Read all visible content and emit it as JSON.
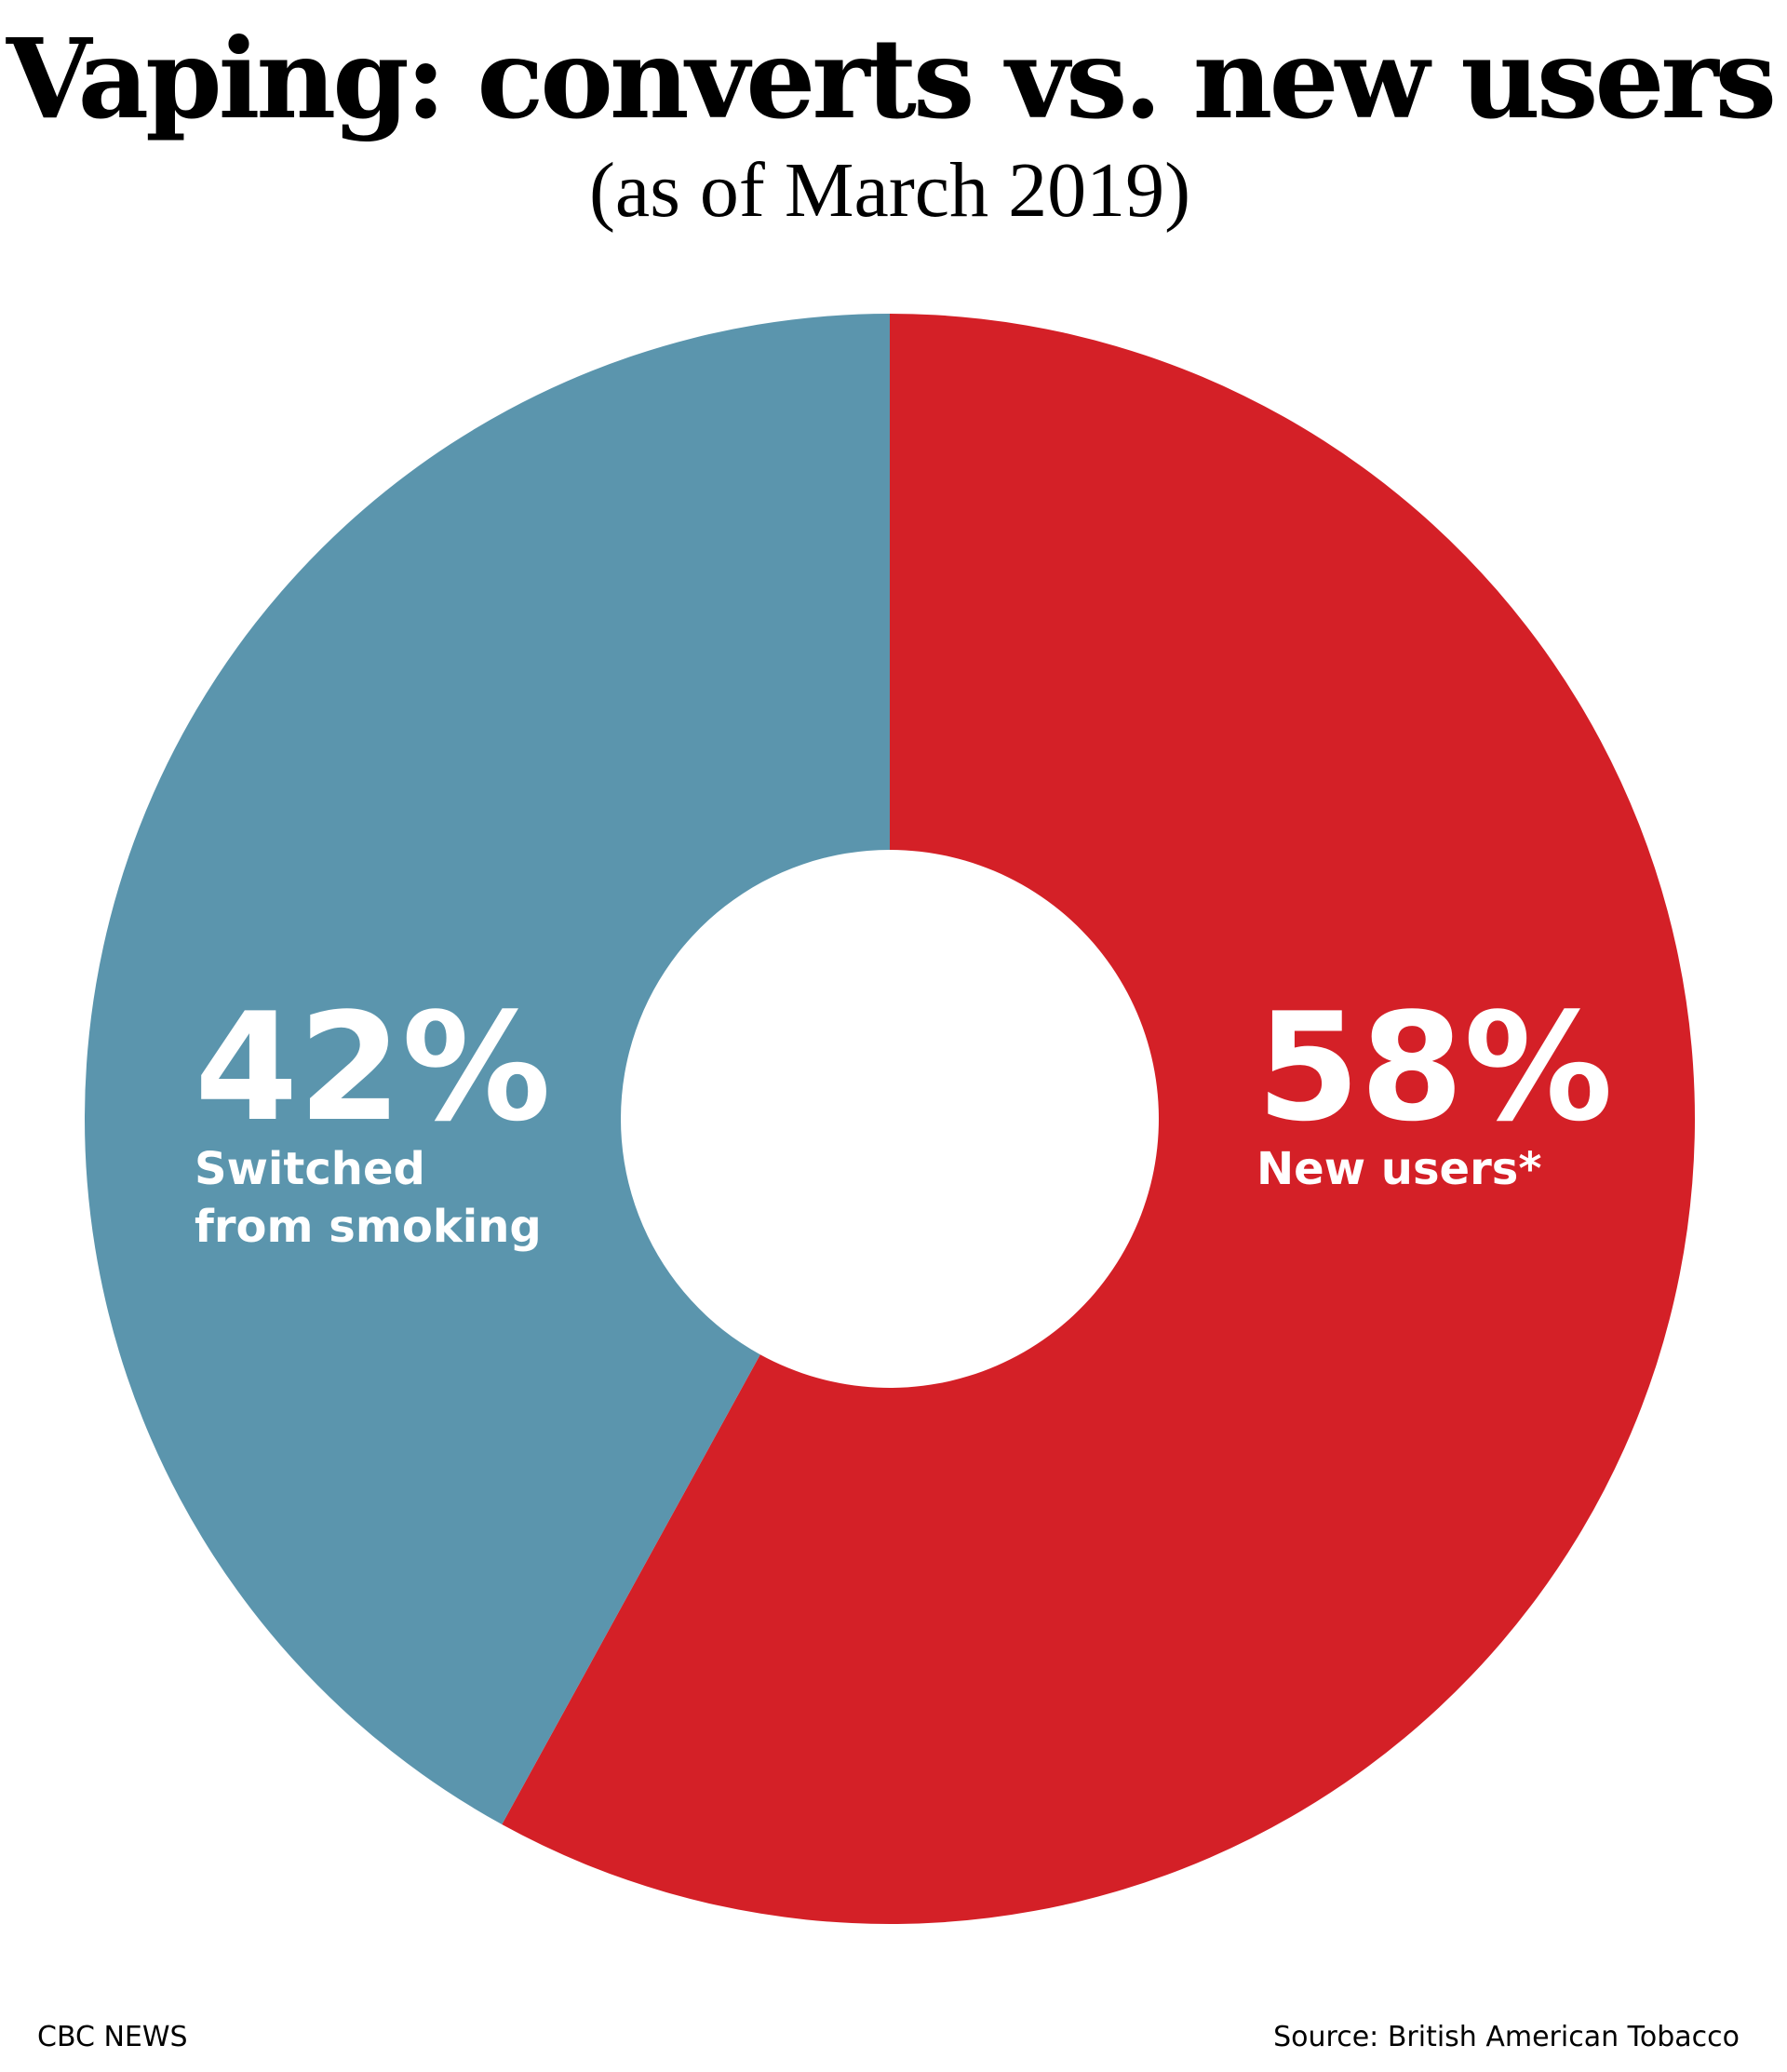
{
  "chart_data": {
    "type": "donut",
    "title": "Vaping: converts vs. new users",
    "subtitle": "(as of March 2019)",
    "categories": [
      [
        "New users*"
      ],
      [
        "Switched",
        "from smoking"
      ]
    ],
    "values": [
      58,
      42
    ],
    "value_labels": [
      "58%",
      "42%"
    ],
    "colors": [
      "#d42027",
      "#5b95ad"
    ],
    "credit": "CBC NEWS",
    "source": "Source:  British American Tobacco"
  }
}
